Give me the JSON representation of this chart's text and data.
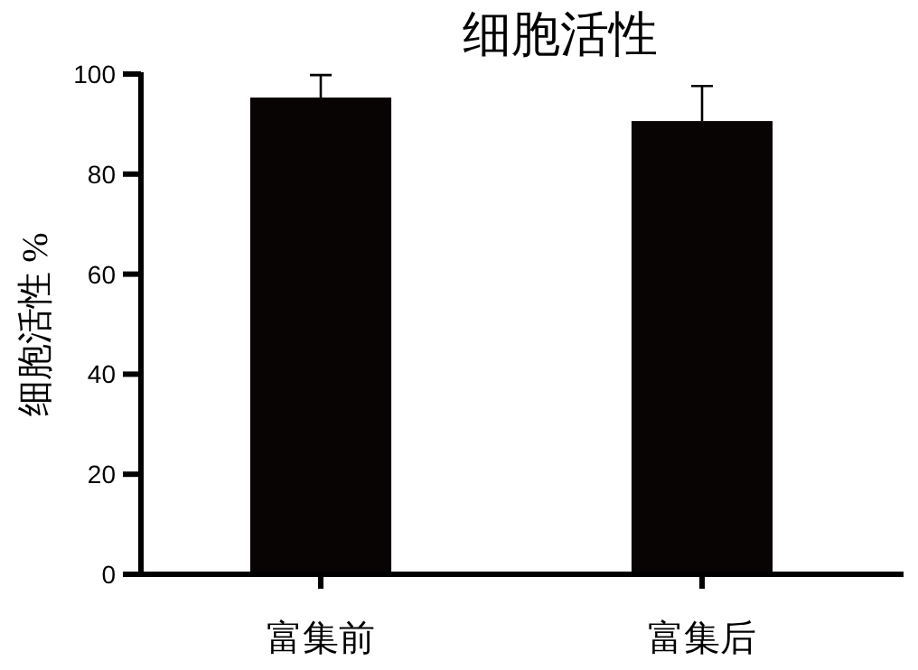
{
  "chart_data": {
    "type": "bar",
    "title": "细胞活性",
    "ylabel": "细胞活性 %",
    "categories": [
      "富集前",
      "富集后"
    ],
    "values": [
      95.3,
      90.6
    ],
    "errors": [
      4.5,
      7
    ],
    "color": "#070403",
    "ylim": [
      0,
      100
    ],
    "yticks": [
      0,
      20,
      40,
      60,
      80,
      100
    ],
    "grid": false
  }
}
